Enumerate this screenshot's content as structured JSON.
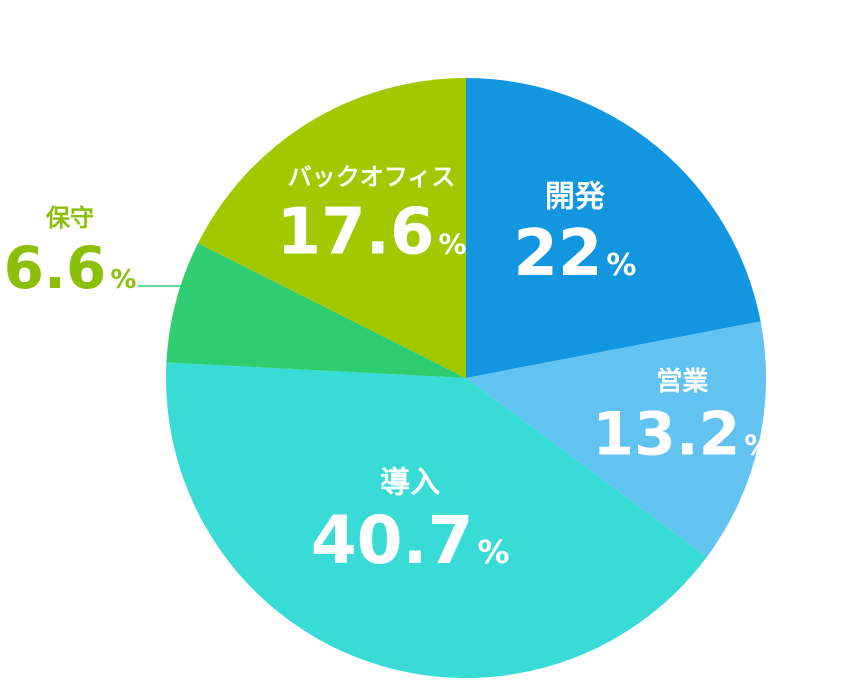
{
  "chart_data": {
    "type": "pie",
    "start_angle_deg": 0,
    "direction": "clockwise",
    "unit": "%",
    "slices": [
      {
        "name": "開発",
        "value": 22,
        "display": "22",
        "color": "#1296df"
      },
      {
        "name": "営業",
        "value": 13.2,
        "display": "13.2",
        "color": "#63c3f0"
      },
      {
        "name": "導入",
        "value": 40.7,
        "display": "40.7",
        "color": "#38dbd5"
      },
      {
        "name": "保守",
        "value": 6.6,
        "display": "6.6",
        "color": "#2ecd6f",
        "label_color": "#8cbf0a",
        "label_position": "outside-left"
      },
      {
        "name": "バックオフィス",
        "value": 17.6,
        "display": "17.6",
        "color": "#a2c800"
      }
    ]
  }
}
